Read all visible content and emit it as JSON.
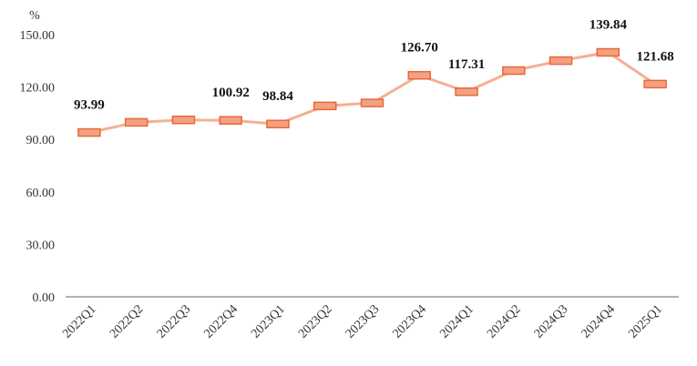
{
  "chart_data": {
    "type": "line",
    "title": "",
    "xlabel": "",
    "ylabel": "%",
    "ylim": [
      0,
      150
    ],
    "yticks": [
      "0.00",
      "30.00",
      "60.00",
      "90.00",
      "120.00",
      "150.00"
    ],
    "grid": false,
    "categories": [
      "2022Q1",
      "2022Q2",
      "2022Q3",
      "2022Q4",
      "2023Q1",
      "2023Q2",
      "2023Q3",
      "2023Q4",
      "2024Q1",
      "2024Q2",
      "2024Q3",
      "2024Q4",
      "2025Q1"
    ],
    "values": [
      93.99,
      99.8,
      101.2,
      100.92,
      98.84,
      109.2,
      110.9,
      126.7,
      117.31,
      129.4,
      135.1,
      139.84,
      121.68
    ],
    "data_labels": [
      "93.99",
      "",
      "",
      "100.92",
      "98.84",
      "",
      "",
      "126.70",
      "117.31",
      "",
      "",
      "139.84",
      "121.68"
    ],
    "colors": {
      "line": "#f5b092",
      "marker_fill": "#f4a183",
      "marker_stroke": "#e8683a",
      "drop_line": "#f0a88c",
      "axis": "#666666"
    }
  }
}
